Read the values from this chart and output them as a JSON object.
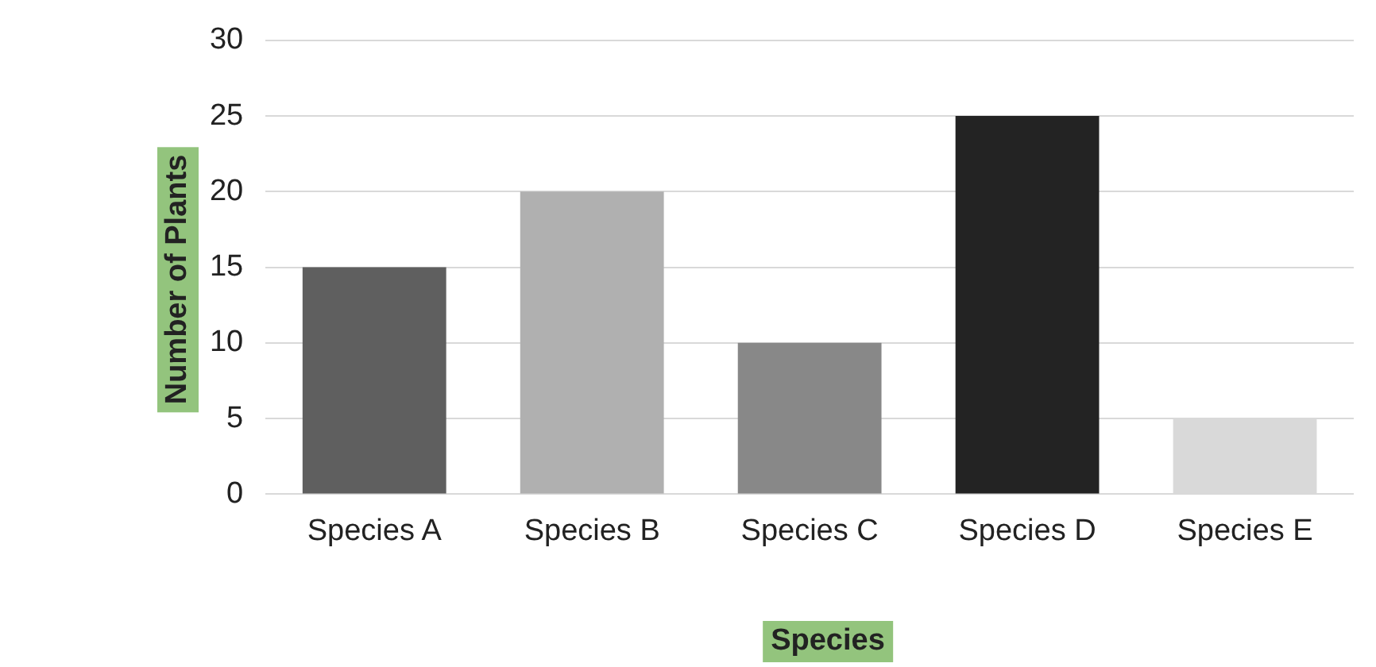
{
  "chart_data": {
    "type": "bar",
    "xlabel": "Species",
    "ylabel": "Number of Plants",
    "categories": [
      "Species A",
      "Species B",
      "Species C",
      "Species D",
      "Species E"
    ],
    "values": [
      15,
      20,
      10,
      25,
      5
    ],
    "colors": [
      "#5f5f5f",
      "#b0b0b0",
      "#888888",
      "#232323",
      "#d9d9d9"
    ],
    "ylim": [
      0,
      30
    ],
    "yticks": [
      0,
      5,
      10,
      15,
      20,
      25,
      30
    ],
    "grid": "y",
    "legend": false
  }
}
